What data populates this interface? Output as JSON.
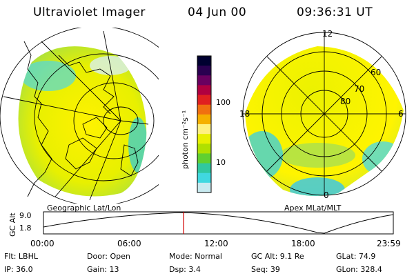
{
  "header": {
    "instrument": "Ultraviolet Imager",
    "date": "04 Jun 00",
    "time": "09:36:31 UT"
  },
  "left_map": {
    "label": "Geographic Lat/Lon"
  },
  "right_map": {
    "label": "Apex MLat/MLT",
    "mlt_labels": [
      "12",
      "18",
      "6",
      "0"
    ],
    "lat_labels": [
      "60",
      "70",
      "80"
    ]
  },
  "colorbar": {
    "unit": "photon cm⁻²s⁻¹",
    "ticks": [
      "100",
      "10"
    ],
    "colors": [
      "#000030",
      "#2a0050",
      "#6a0060",
      "#b00040",
      "#e02020",
      "#f07010",
      "#f5b000",
      "#fff080",
      "#e8f000",
      "#b0e000",
      "#60d030",
      "#30c8a0",
      "#40d8e0",
      "#c8eaf0"
    ]
  },
  "altitude_plot": {
    "ylabel": "GC Alt",
    "yticks": [
      "9.0",
      "1.8"
    ],
    "xticks": [
      "00:00",
      "06:00",
      "12:00",
      "18:00",
      "23:59"
    ],
    "marker_time": "09:36",
    "marker_color": "#d00000"
  },
  "footer": {
    "flt": "Flt: LBHL",
    "door": "Door: Open",
    "mode": "Mode: Normal",
    "gcalt": "GC Alt: 9.1 Re",
    "glat": "GLat:  74.9",
    "ip": "IP: 36.0",
    "gain": "Gain: 13",
    "dsp": "Dsp:     3.4",
    "seq": "Seq: 39",
    "glon": "GLon: 328.4"
  }
}
